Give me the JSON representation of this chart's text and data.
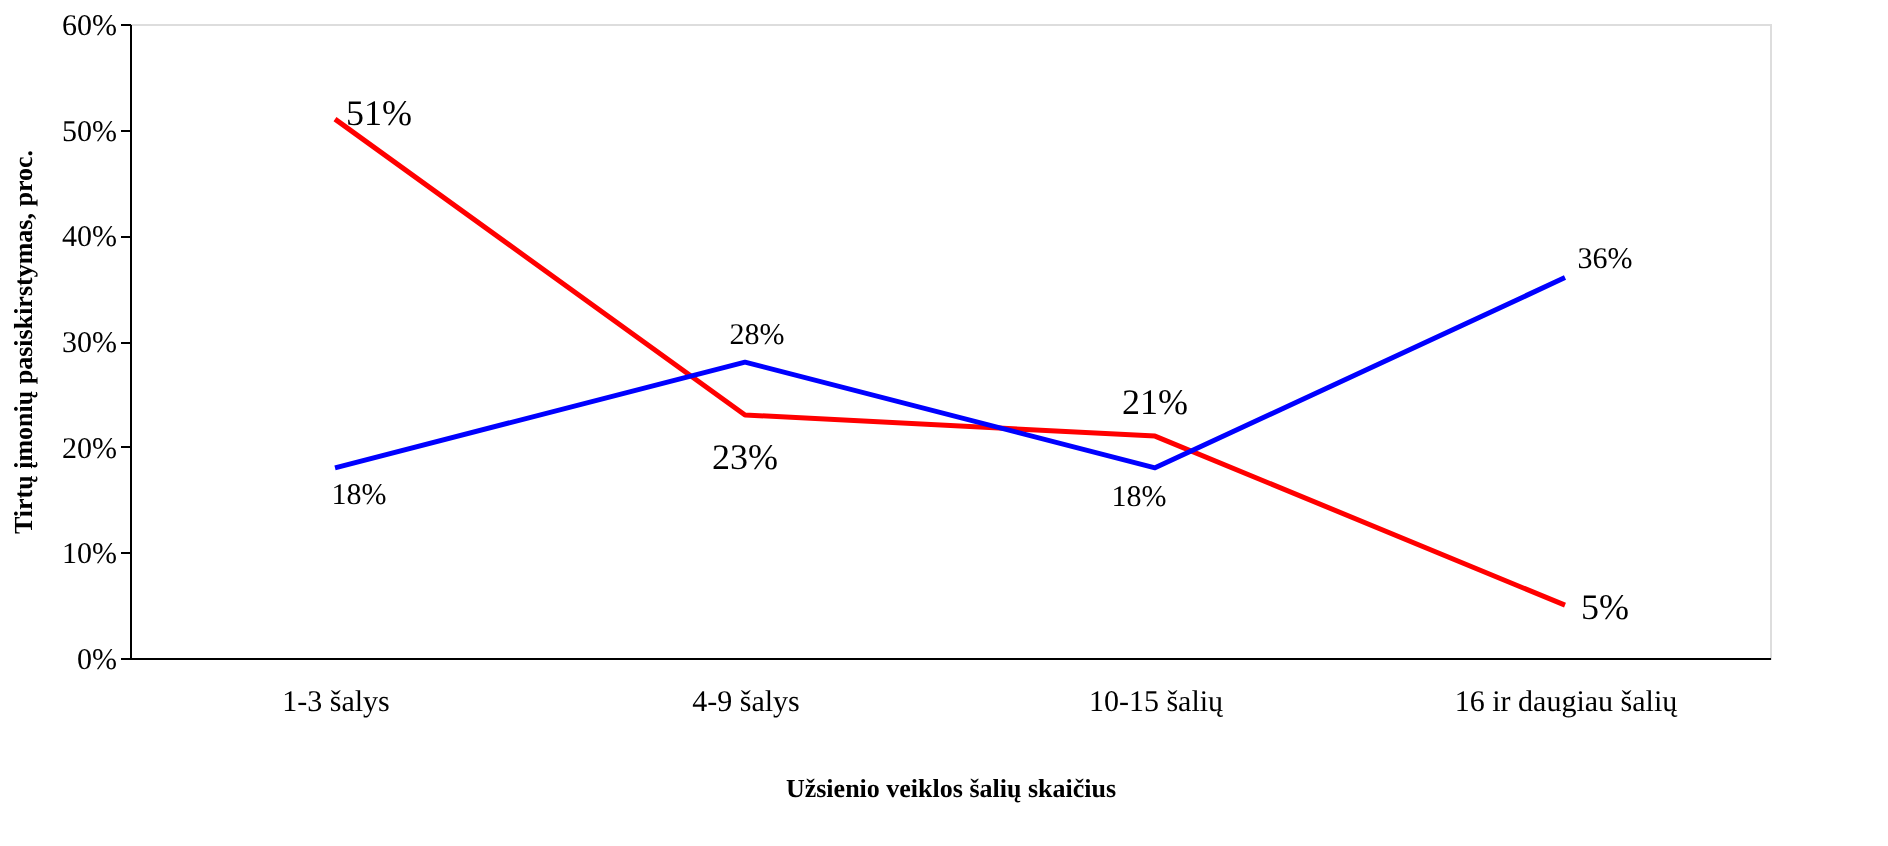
{
  "chart_data": {
    "type": "line",
    "xlabel": "Užsienio veiklos šalių skaičius",
    "ylabel": "Tirtų įmonių pasiskirstymas, proc.",
    "categories": [
      "1-3 šalys",
      "4-9 šalys",
      "10-15 šalių",
      "16 ir daugiau šalių"
    ],
    "series": [
      {
        "color": "#ff0000",
        "values": [
          51,
          23,
          21,
          5
        ],
        "value_labels": [
          "51%",
          "23%",
          "21%",
          "5%"
        ]
      },
      {
        "color": "#0000ff",
        "values": [
          18,
          28,
          18,
          36
        ],
        "value_labels": [
          "18%",
          "28%",
          "18%",
          "36%"
        ]
      }
    ],
    "ylim": [
      0,
      60
    ],
    "yticks": [
      {
        "value": 0,
        "label": "0%"
      },
      {
        "value": 10,
        "label": "10%"
      },
      {
        "value": 20,
        "label": "20%"
      },
      {
        "value": 30,
        "label": "30%"
      },
      {
        "value": 40,
        "label": "40%"
      },
      {
        "value": 50,
        "label": "50%"
      },
      {
        "value": 60,
        "label": "60%"
      }
    ],
    "grid": false,
    "legend": false,
    "marker": "none",
    "line_style": "solid"
  }
}
